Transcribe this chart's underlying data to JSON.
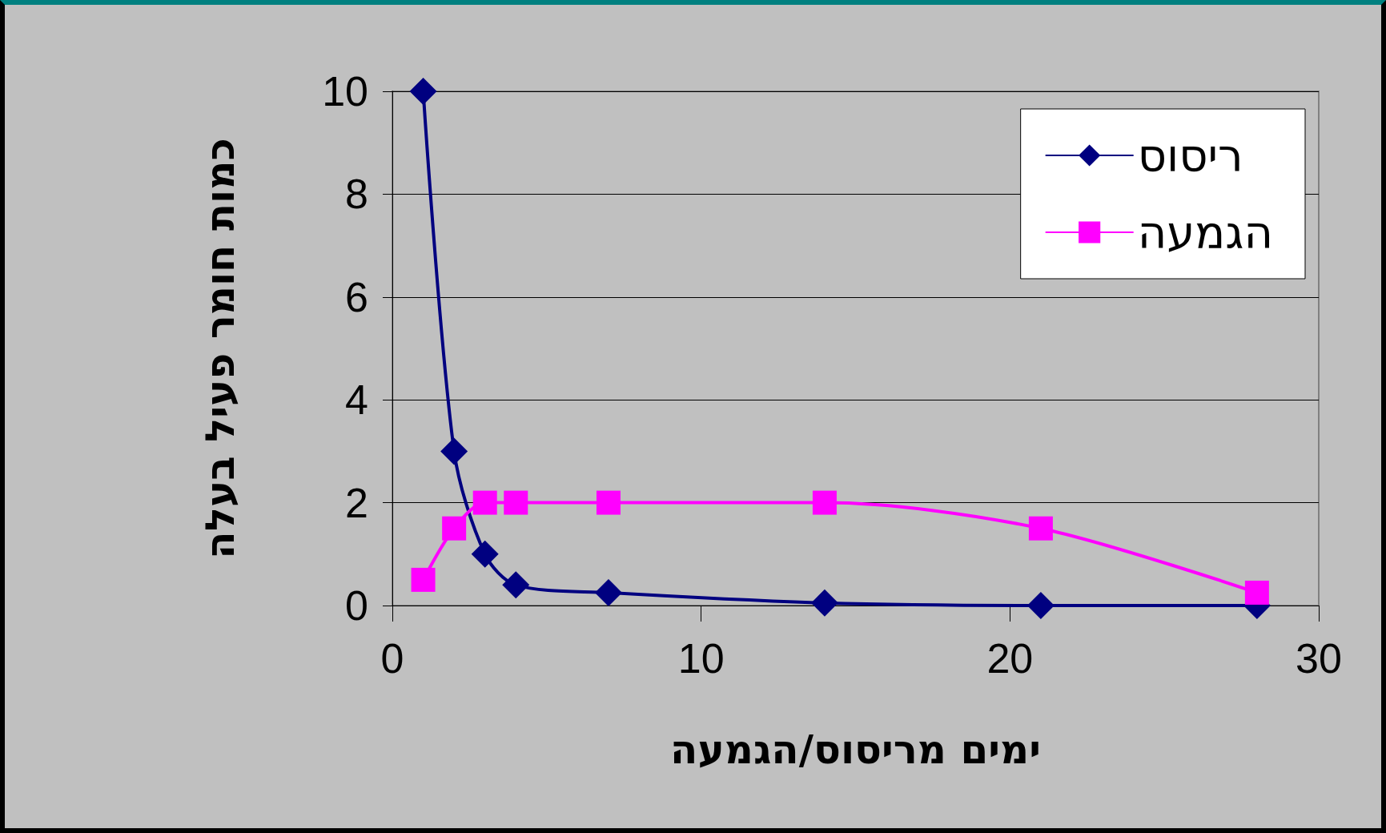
{
  "chart_data": {
    "type": "line",
    "xlabel": "ימים מריסוס/הגמעה",
    "ylabel": "כמות חומר פעיל בעלה",
    "x": [
      1,
      2,
      3,
      4,
      7,
      14,
      21,
      28
    ],
    "series": [
      {
        "name": "ריסוס",
        "color": "#000080",
        "marker": "diamond",
        "values": [
          10,
          3,
          1,
          0.4,
          0.25,
          0.05,
          0,
          0
        ]
      },
      {
        "name": "הגמעה",
        "color": "#ff00ff",
        "marker": "square",
        "values": [
          0.5,
          1.5,
          2,
          2,
          2,
          2,
          1.5,
          0.25
        ]
      }
    ],
    "xlim": [
      0,
      30
    ],
    "xticks": [
      0,
      10,
      20,
      30
    ],
    "ylim": [
      0,
      10
    ],
    "yticks": [
      0,
      2,
      4,
      6,
      8,
      10
    ],
    "grid": "y",
    "legend": "top right",
    "line_style": "solid"
  }
}
